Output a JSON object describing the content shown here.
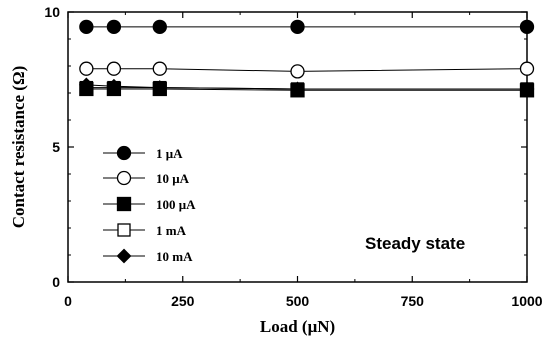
{
  "chart_data": {
    "type": "line",
    "title": "",
    "xlabel": "Load (μN)",
    "ylabel": "Contact resistance (Ω)",
    "xlim": [
      0,
      1000
    ],
    "ylim": [
      0,
      10
    ],
    "x_ticks": [
      0,
      250,
      500,
      750,
      1000
    ],
    "y_ticks": [
      0,
      5,
      10
    ],
    "x_tick_labels": [
      "0",
      "250",
      "500",
      "750",
      "1000"
    ],
    "y_tick_labels": [
      "0",
      "5",
      "10"
    ],
    "grid": false,
    "legend_position": "left",
    "annotation": "Steady state",
    "series": [
      {
        "name": "1 μA",
        "marker": "circle-filled",
        "x": [
          40,
          100,
          200,
          500,
          1000
        ],
        "y": [
          9.45,
          9.45,
          9.45,
          9.45,
          9.45
        ]
      },
      {
        "name": "10 μA",
        "marker": "circle-open",
        "x": [
          40,
          100,
          200,
          500,
          1000
        ],
        "y": [
          7.9,
          7.9,
          7.9,
          7.8,
          7.9
        ]
      },
      {
        "name": "100 μA",
        "marker": "square-filled",
        "x": [
          40,
          100,
          200,
          500,
          1000
        ],
        "y": [
          7.15,
          7.15,
          7.15,
          7.1,
          7.1
        ]
      },
      {
        "name": "1 mA",
        "marker": "square-open",
        "x": [
          40,
          100,
          200,
          500,
          1000
        ],
        "y": [
          7.2,
          7.2,
          7.2,
          7.15,
          7.15
        ]
      },
      {
        "name": "10 mA",
        "marker": "diamond-filled",
        "x": [
          40,
          100,
          200,
          500,
          1000
        ],
        "y": [
          7.3,
          7.25,
          7.2,
          7.15,
          7.15
        ]
      }
    ]
  }
}
